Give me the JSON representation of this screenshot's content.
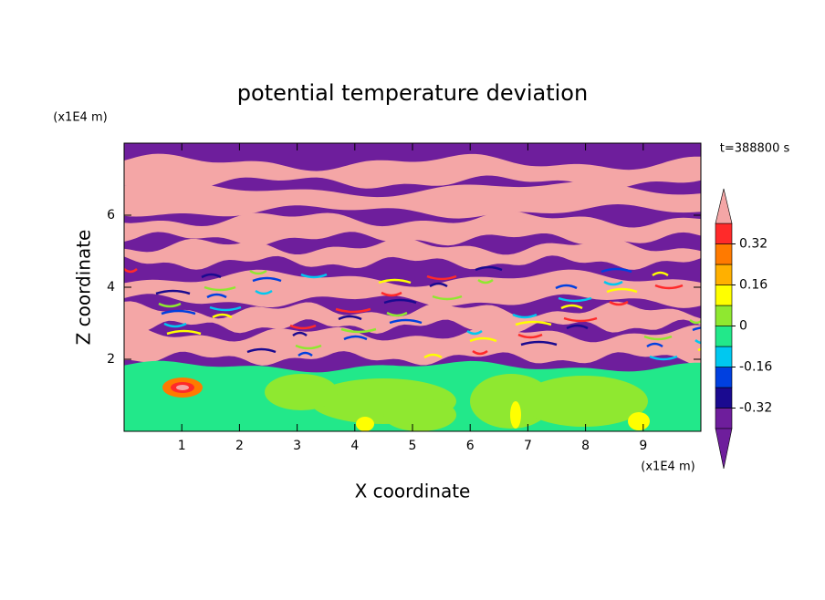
{
  "chart_data": {
    "type": "contour",
    "title": "potential temperature deviation",
    "xlabel": "X coordinate",
    "ylabel": "Z coordinate",
    "x_unit": "(x1E4 m)",
    "y_unit": "(x1E4 m)",
    "time_label": "t=388800 s",
    "xlim": [
      0,
      10
    ],
    "xticks": [
      1,
      2,
      3,
      4,
      5,
      6,
      7,
      8,
      9
    ],
    "ylim": [
      0,
      8
    ],
    "yticks": [
      2,
      4,
      6
    ],
    "colorbar": {
      "levels": [
        -0.4,
        -0.32,
        -0.24,
        -0.16,
        -0.08,
        0,
        0.08,
        0.16,
        0.24,
        0.32,
        0.4
      ],
      "colors": [
        "#6e1e9c",
        "#1a0a90",
        "#0040e0",
        "#00c8f0",
        "#22e88a",
        "#8fe830",
        "#ffff00",
        "#ffb000",
        "#ff7a00",
        "#ff2a2a"
      ],
      "extend_colors": [
        "#6e1e9c",
        "#f4a6a6"
      ],
      "ticks": [
        -0.32,
        -0.16,
        0,
        0.16,
        0.32
      ]
    }
  }
}
